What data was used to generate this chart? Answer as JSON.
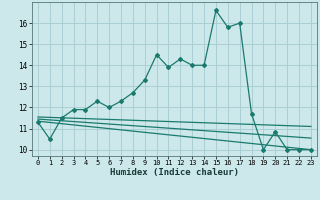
{
  "main_x": [
    0,
    1,
    2,
    3,
    4,
    5,
    6,
    7,
    8,
    9,
    10,
    11,
    12,
    13,
    14,
    15,
    16,
    17,
    18,
    19,
    20,
    21,
    22,
    23
  ],
  "main_y": [
    11.3,
    10.5,
    11.5,
    11.9,
    11.9,
    12.3,
    12.0,
    12.3,
    12.7,
    13.3,
    14.5,
    13.9,
    14.3,
    14.0,
    14.0,
    16.6,
    15.8,
    16.0,
    11.7,
    10.0,
    10.85,
    10.0,
    10.0,
    10.0
  ],
  "trend1_x": [
    0,
    23
  ],
  "trend1_y": [
    11.55,
    11.1
  ],
  "trend2_x": [
    0,
    23
  ],
  "trend2_y": [
    11.45,
    10.55
  ],
  "trend3_x": [
    0,
    23
  ],
  "trend3_y": [
    11.35,
    10.0
  ],
  "line_color": "#1a7a6e",
  "bg_color": "#cce8ea",
  "grid_color": "#aacfd4",
  "xlabel": "Humidex (Indice chaleur)",
  "ylim": [
    9.7,
    17.0
  ],
  "xlim": [
    -0.5,
    23.5
  ],
  "yticks": [
    10,
    11,
    12,
    13,
    14,
    15,
    16
  ],
  "xticks": [
    0,
    1,
    2,
    3,
    4,
    5,
    6,
    7,
    8,
    9,
    10,
    11,
    12,
    13,
    14,
    15,
    16,
    17,
    18,
    19,
    20,
    21,
    22,
    23
  ]
}
